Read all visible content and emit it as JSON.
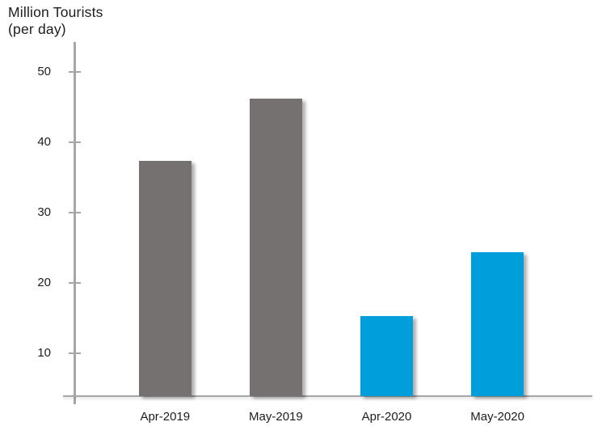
{
  "chart_data": {
    "type": "bar",
    "title": "Million Tourists (per day)",
    "title_lines": [
      "Million Tourists",
      "(per day)"
    ],
    "categories": [
      "Apr-2019",
      "May-2019",
      "Apr-2020",
      "May-2020"
    ],
    "values": [
      37.3,
      46.2,
      15.3,
      24.4
    ],
    "bar_colors": [
      "#767171",
      "#767171",
      "#009FDB",
      "#009FDB"
    ],
    "series_color_legend": {
      "2019_bars": "#767171",
      "2020_bars": "#009FDB"
    },
    "xlabel": "",
    "ylabel": "Million Tourists (per day)",
    "yticks": [
      10,
      20,
      30,
      40,
      50
    ],
    "ylim": [
      3.9,
      54
    ],
    "grid": false,
    "legend_position": "none",
    "axis_color": "#A6A6A6",
    "text_color": "#1D1D1D",
    "background_color": "#FFFFFF"
  }
}
